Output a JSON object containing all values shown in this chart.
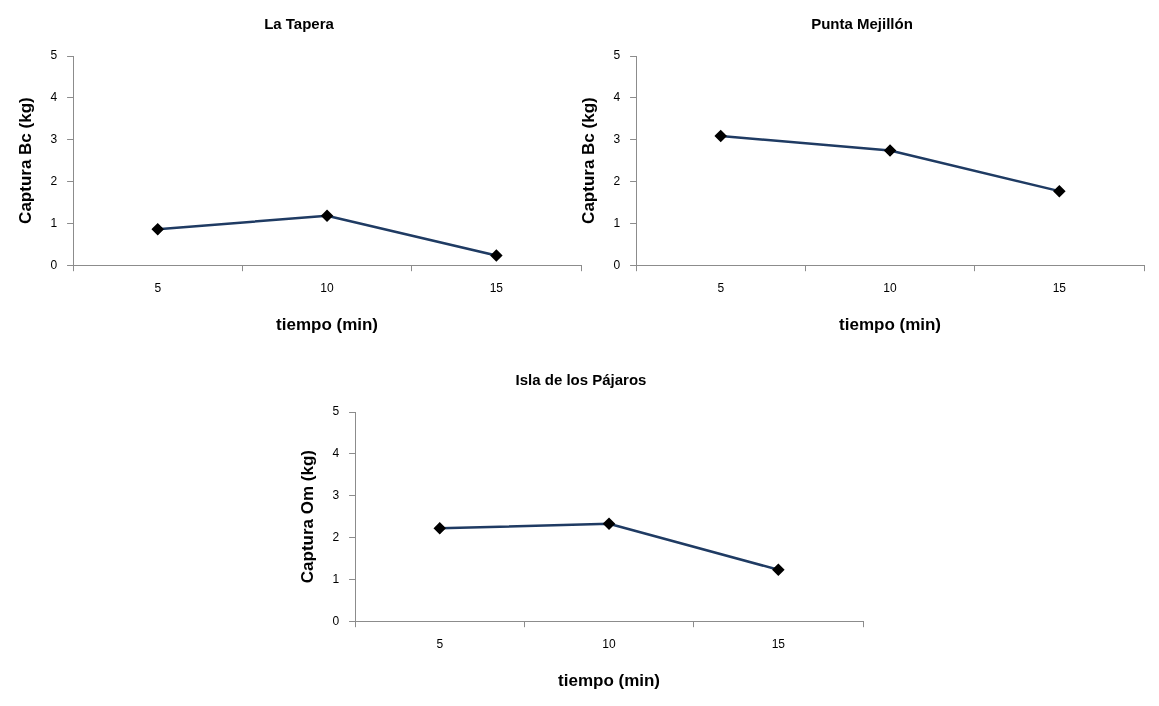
{
  "chart_data": [
    {
      "type": "line",
      "title": "La Tapera",
      "xlabel": "tiempo (min)",
      "ylabel": "Captura Bc (kg)",
      "categories": [
        "5",
        "10",
        "15"
      ],
      "series": [
        {
          "color": "#1f3b63",
          "values": [
            0.86,
            1.18,
            0.23
          ]
        }
      ],
      "ylim": [
        0,
        5
      ],
      "yticks": [
        0,
        1,
        2,
        3,
        4,
        5
      ],
      "grid": false,
      "legend": false,
      "marker": "diamond",
      "line_style": "solid"
    },
    {
      "type": "line",
      "title": "Punta Mejillón",
      "xlabel": "tiempo (min)",
      "ylabel": "Captura Bc (kg)",
      "categories": [
        "5",
        "10",
        "15"
      ],
      "series": [
        {
          "color": "#1f3b63",
          "values": [
            3.09,
            2.74,
            1.77
          ]
        }
      ],
      "ylim": [
        0,
        5
      ],
      "yticks": [
        0,
        1,
        2,
        3,
        4,
        5
      ],
      "grid": false,
      "legend": false,
      "marker": "diamond",
      "line_style": "solid"
    },
    {
      "type": "line",
      "title": "Isla de los Pájaros",
      "xlabel": "tiempo (min)",
      "ylabel": "Captura Om (kg)",
      "categories": [
        "5",
        "10",
        "15"
      ],
      "series": [
        {
          "color": "#1f3b63",
          "values": [
            2.22,
            2.33,
            1.23
          ]
        }
      ],
      "ylim": [
        0,
        5
      ],
      "yticks": [
        0,
        1,
        2,
        3,
        4,
        5
      ],
      "grid": false,
      "legend": false,
      "marker": "diamond",
      "line_style": "solid"
    }
  ]
}
